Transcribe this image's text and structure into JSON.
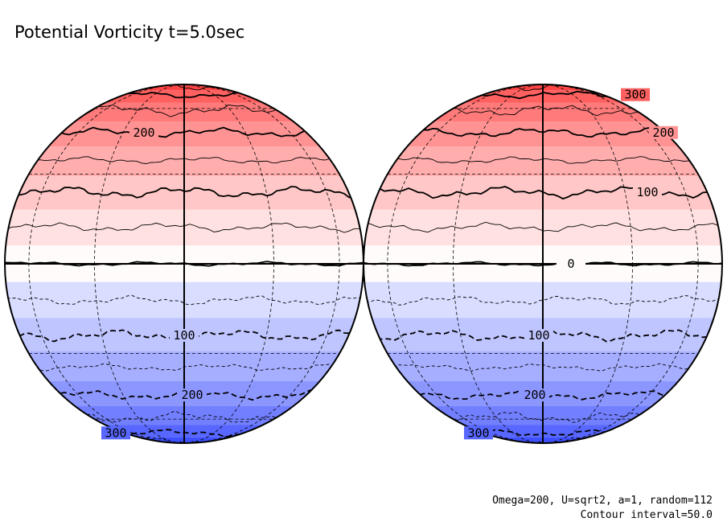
{
  "title": "Potential Vorticity t=5.0sec",
  "caption_lines": [
    "Omega=200, U=sqrt2, a=1, random=112",
    "Contour interval=50.0"
  ],
  "colors": {
    "positive_max": "#ff3a3a",
    "zero": "#ffffff",
    "negative_max": "#3a4cff",
    "contour": "#000000",
    "grid": "#000000"
  },
  "contour_interval": 50.0,
  "bands": [
    {
      "level": 350
    },
    {
      "level": 300
    },
    {
      "level": 250
    },
    {
      "level": 200
    },
    {
      "level": 150
    },
    {
      "level": 100
    },
    {
      "level": 50
    },
    {
      "level": 0
    },
    {
      "level": -50
    },
    {
      "level": -100
    },
    {
      "level": -150
    },
    {
      "level": -200
    },
    {
      "level": -250
    },
    {
      "level": -300
    },
    {
      "level": -350
    }
  ],
  "hemispheres": [
    {
      "name": "left",
      "labels": [
        {
          "text": "200",
          "level": 200
        },
        {
          "text": "100",
          "level": -100
        },
        {
          "text": "200",
          "level": -200
        },
        {
          "text": "300",
          "level": -300
        }
      ]
    },
    {
      "name": "right",
      "labels": [
        {
          "text": "300",
          "level": 300
        },
        {
          "text": "200",
          "level": 200
        },
        {
          "text": "100",
          "level": 100
        },
        {
          "text": "0",
          "level": 0
        },
        {
          "text": "100",
          "level": -100
        },
        {
          "text": "200",
          "level": -200
        },
        {
          "text": "300",
          "level": -300
        }
      ]
    }
  ]
}
